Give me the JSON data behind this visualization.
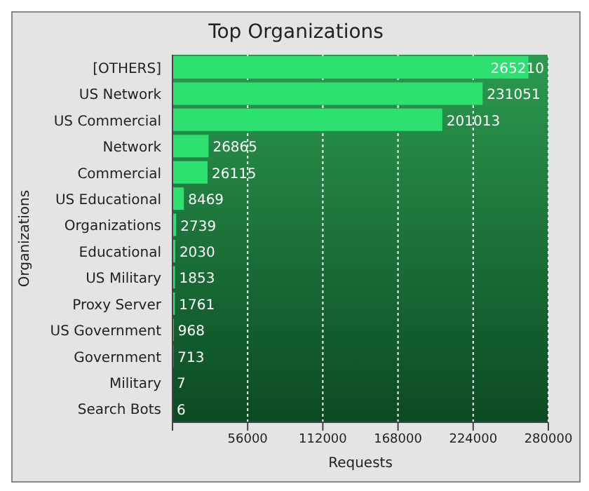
{
  "chart_data": {
    "type": "bar",
    "orientation": "horizontal",
    "title": "Top Organizations",
    "xlabel": "Requests",
    "ylabel": "Organizations",
    "categories": [
      "[OTHERS]",
      "US Network",
      "US Commercial",
      "Network",
      "Commercial",
      "US Educational",
      "Organizations",
      "Educational",
      "US Military",
      "Proxy Server",
      "US Government",
      "Government",
      "Military",
      "Search Bots"
    ],
    "values": [
      265210,
      231051,
      201013,
      26865,
      26115,
      8469,
      2739,
      2030,
      1853,
      1761,
      968,
      713,
      7,
      6
    ],
    "color": "#2ee070",
    "xlim": [
      0,
      280000
    ],
    "xticks": [
      {
        "value": 0,
        "label": null
      },
      56000,
      112000,
      168000,
      224000,
      280000
    ],
    "grid": "x",
    "data_labels": true
  }
}
